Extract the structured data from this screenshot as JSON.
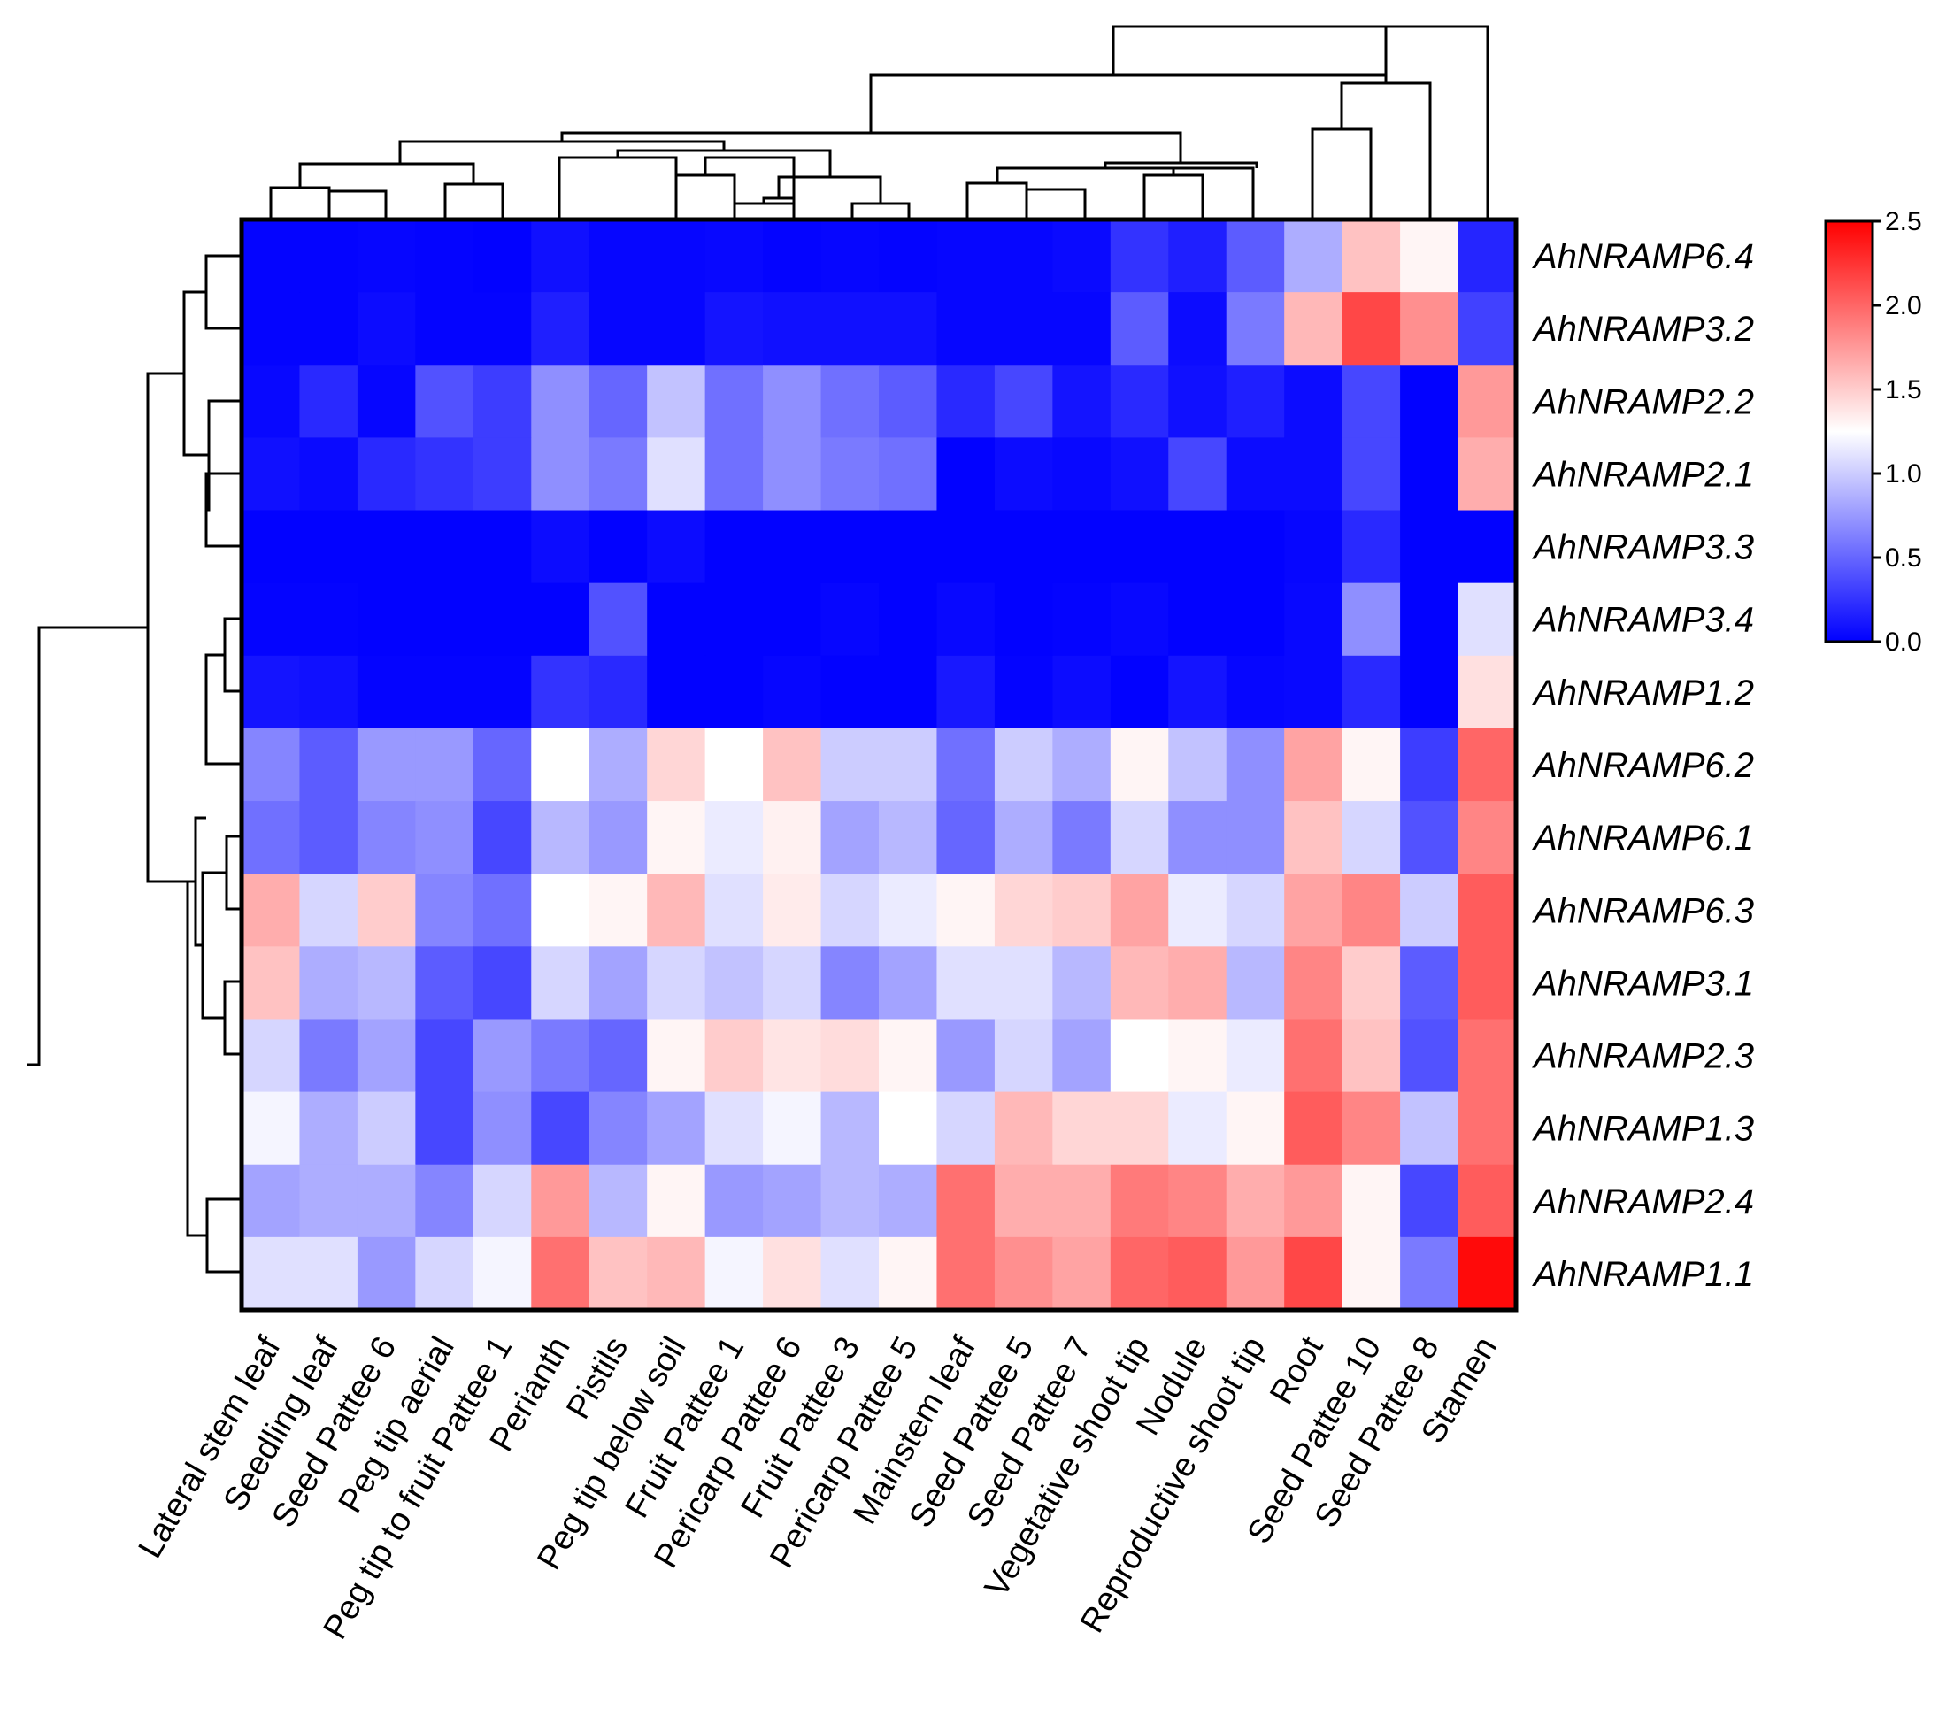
{
  "chart_data": {
    "type": "heatmap",
    "title": "",
    "columns": [
      "Lateral stem leaf",
      "Seedling leaf",
      "Seed Pattee 6",
      "Peg tip aerial",
      "Peg tip to fruit Pattee 1",
      "Perianth",
      "Pistils",
      "Peg tip below soil",
      "Fruit Pattee 1",
      "Pericarp Pattee 6",
      "Fruit Pattee 3",
      "Pericarp Pattee 5",
      "Mainstem leaf",
      "Seed Pattee 5",
      "Seed Pattee 7",
      "Vegetative shoot tip",
      "Nodule",
      "Reproductive shoot tip",
      "Root",
      "Seed Pattee 10",
      "Seed Pattee 8",
      "Stamen"
    ],
    "rows": [
      "AhNRAMP6.4",
      "AhNRAMP3.2",
      "AhNRAMP2.2",
      "AhNRAMP2.1",
      "AhNRAMP3.3",
      "AhNRAMP3.4",
      "AhNRAMP1.2",
      "AhNRAMP6.2",
      "AhNRAMP6.1",
      "AhNRAMP6.3",
      "AhNRAMP3.1",
      "AhNRAMP2.3",
      "AhNRAMP1.3",
      "AhNRAMP2.4",
      "AhNRAMP1.1"
    ],
    "values": [
      [
        0.02,
        0.02,
        0.03,
        0.02,
        0.01,
        0.08,
        0.03,
        0.03,
        0.04,
        0.02,
        0.03,
        0.02,
        0.03,
        0.03,
        0.05,
        0.25,
        0.15,
        0.45,
        0.85,
        1.55,
        1.3,
        0.18
      ],
      [
        0.02,
        0.02,
        0.06,
        0.02,
        0.02,
        0.15,
        0.03,
        0.03,
        0.1,
        0.08,
        0.08,
        0.08,
        0.03,
        0.03,
        0.03,
        0.45,
        0.06,
        0.6,
        1.6,
        2.15,
        1.8,
        0.32
      ],
      [
        0.04,
        0.2,
        0.03,
        0.4,
        0.3,
        0.7,
        0.5,
        0.95,
        0.55,
        0.7,
        0.55,
        0.45,
        0.2,
        0.35,
        0.1,
        0.2,
        0.08,
        0.15,
        0.06,
        0.35,
        0.01,
        1.75
      ],
      [
        0.08,
        0.05,
        0.2,
        0.25,
        0.3,
        0.7,
        0.6,
        1.1,
        0.55,
        0.7,
        0.6,
        0.55,
        0.01,
        0.06,
        0.04,
        0.08,
        0.35,
        0.06,
        0.06,
        0.35,
        0.01,
        1.65
      ],
      [
        0.01,
        0.01,
        0.01,
        0.01,
        0.01,
        0.06,
        0.01,
        0.06,
        0.01,
        0.01,
        0.01,
        0.01,
        0.01,
        0.01,
        0.01,
        0.01,
        0.01,
        0.01,
        0.03,
        0.2,
        0.01,
        0.01
      ],
      [
        0.02,
        0.02,
        0.01,
        0.01,
        0.01,
        0.01,
        0.4,
        0.01,
        0.01,
        0.01,
        0.03,
        0.01,
        0.04,
        0.01,
        0.02,
        0.04,
        0.01,
        0.01,
        0.04,
        0.7,
        0.01,
        1.1
      ],
      [
        0.1,
        0.08,
        0.02,
        0.02,
        0.02,
        0.25,
        0.2,
        0.01,
        0.01,
        0.03,
        0.01,
        0.01,
        0.12,
        0.02,
        0.06,
        0.01,
        0.1,
        0.03,
        0.04,
        0.2,
        0.01,
        1.4
      ],
      [
        0.65,
        0.45,
        0.75,
        0.75,
        0.5,
        1.25,
        0.85,
        1.45,
        1.25,
        1.55,
        1.0,
        1.0,
        0.55,
        1.0,
        0.85,
        1.3,
        0.95,
        0.7,
        1.7,
        1.3,
        0.3,
        2.0
      ],
      [
        0.55,
        0.45,
        0.65,
        0.7,
        0.35,
        0.9,
        0.75,
        1.3,
        1.15,
        1.32,
        0.8,
        0.9,
        0.5,
        0.85,
        0.6,
        1.05,
        0.7,
        0.7,
        1.55,
        1.05,
        0.4,
        1.85
      ],
      [
        1.65,
        1.05,
        1.5,
        0.65,
        0.55,
        1.25,
        1.3,
        1.6,
        1.1,
        1.35,
        1.05,
        1.15,
        1.3,
        1.45,
        1.5,
        1.7,
        1.15,
        1.05,
        1.7,
        1.85,
        1.0,
        2.05
      ],
      [
        1.55,
        0.85,
        0.9,
        0.45,
        0.35,
        1.05,
        0.8,
        1.05,
        0.95,
        1.05,
        0.65,
        0.8,
        1.1,
        1.1,
        0.9,
        1.6,
        1.65,
        0.9,
        1.85,
        1.5,
        0.45,
        2.05
      ],
      [
        1.05,
        0.6,
        0.8,
        0.35,
        0.75,
        0.6,
        0.5,
        1.3,
        1.5,
        1.38,
        1.42,
        1.3,
        0.75,
        1.05,
        0.8,
        1.25,
        1.3,
        1.15,
        1.95,
        1.55,
        0.4,
        1.95
      ],
      [
        1.2,
        0.85,
        1.0,
        0.35,
        0.7,
        0.35,
        0.65,
        0.8,
        1.1,
        1.2,
        0.9,
        1.25,
        1.05,
        1.6,
        1.45,
        1.45,
        1.15,
        1.3,
        2.05,
        1.85,
        0.95,
        1.95
      ],
      [
        0.8,
        0.85,
        0.85,
        0.65,
        1.05,
        1.75,
        0.9,
        1.3,
        0.75,
        0.8,
        0.9,
        0.85,
        1.95,
        1.65,
        1.65,
        1.9,
        1.85,
        1.65,
        1.75,
        1.3,
        0.35,
        2.05
      ],
      [
        1.1,
        1.1,
        0.75,
        1.05,
        1.2,
        1.95,
        1.55,
        1.6,
        1.2,
        1.4,
        1.1,
        1.3,
        1.95,
        1.8,
        1.7,
        2.0,
        2.05,
        1.75,
        2.15,
        1.3,
        0.6,
        2.45
      ]
    ],
    "colorscale": {
      "min": 0.0,
      "max": 2.5,
      "low_color": "#0000ff",
      "mid_color": "#ffffff",
      "high_color": "#ff0000",
      "ticks": [
        "0.0",
        "0.5",
        "1.0",
        "1.5",
        "2.0",
        "2.5"
      ]
    },
    "legend_placement": "right",
    "row_dendrogram": "left",
    "column_dendrogram": "top"
  }
}
